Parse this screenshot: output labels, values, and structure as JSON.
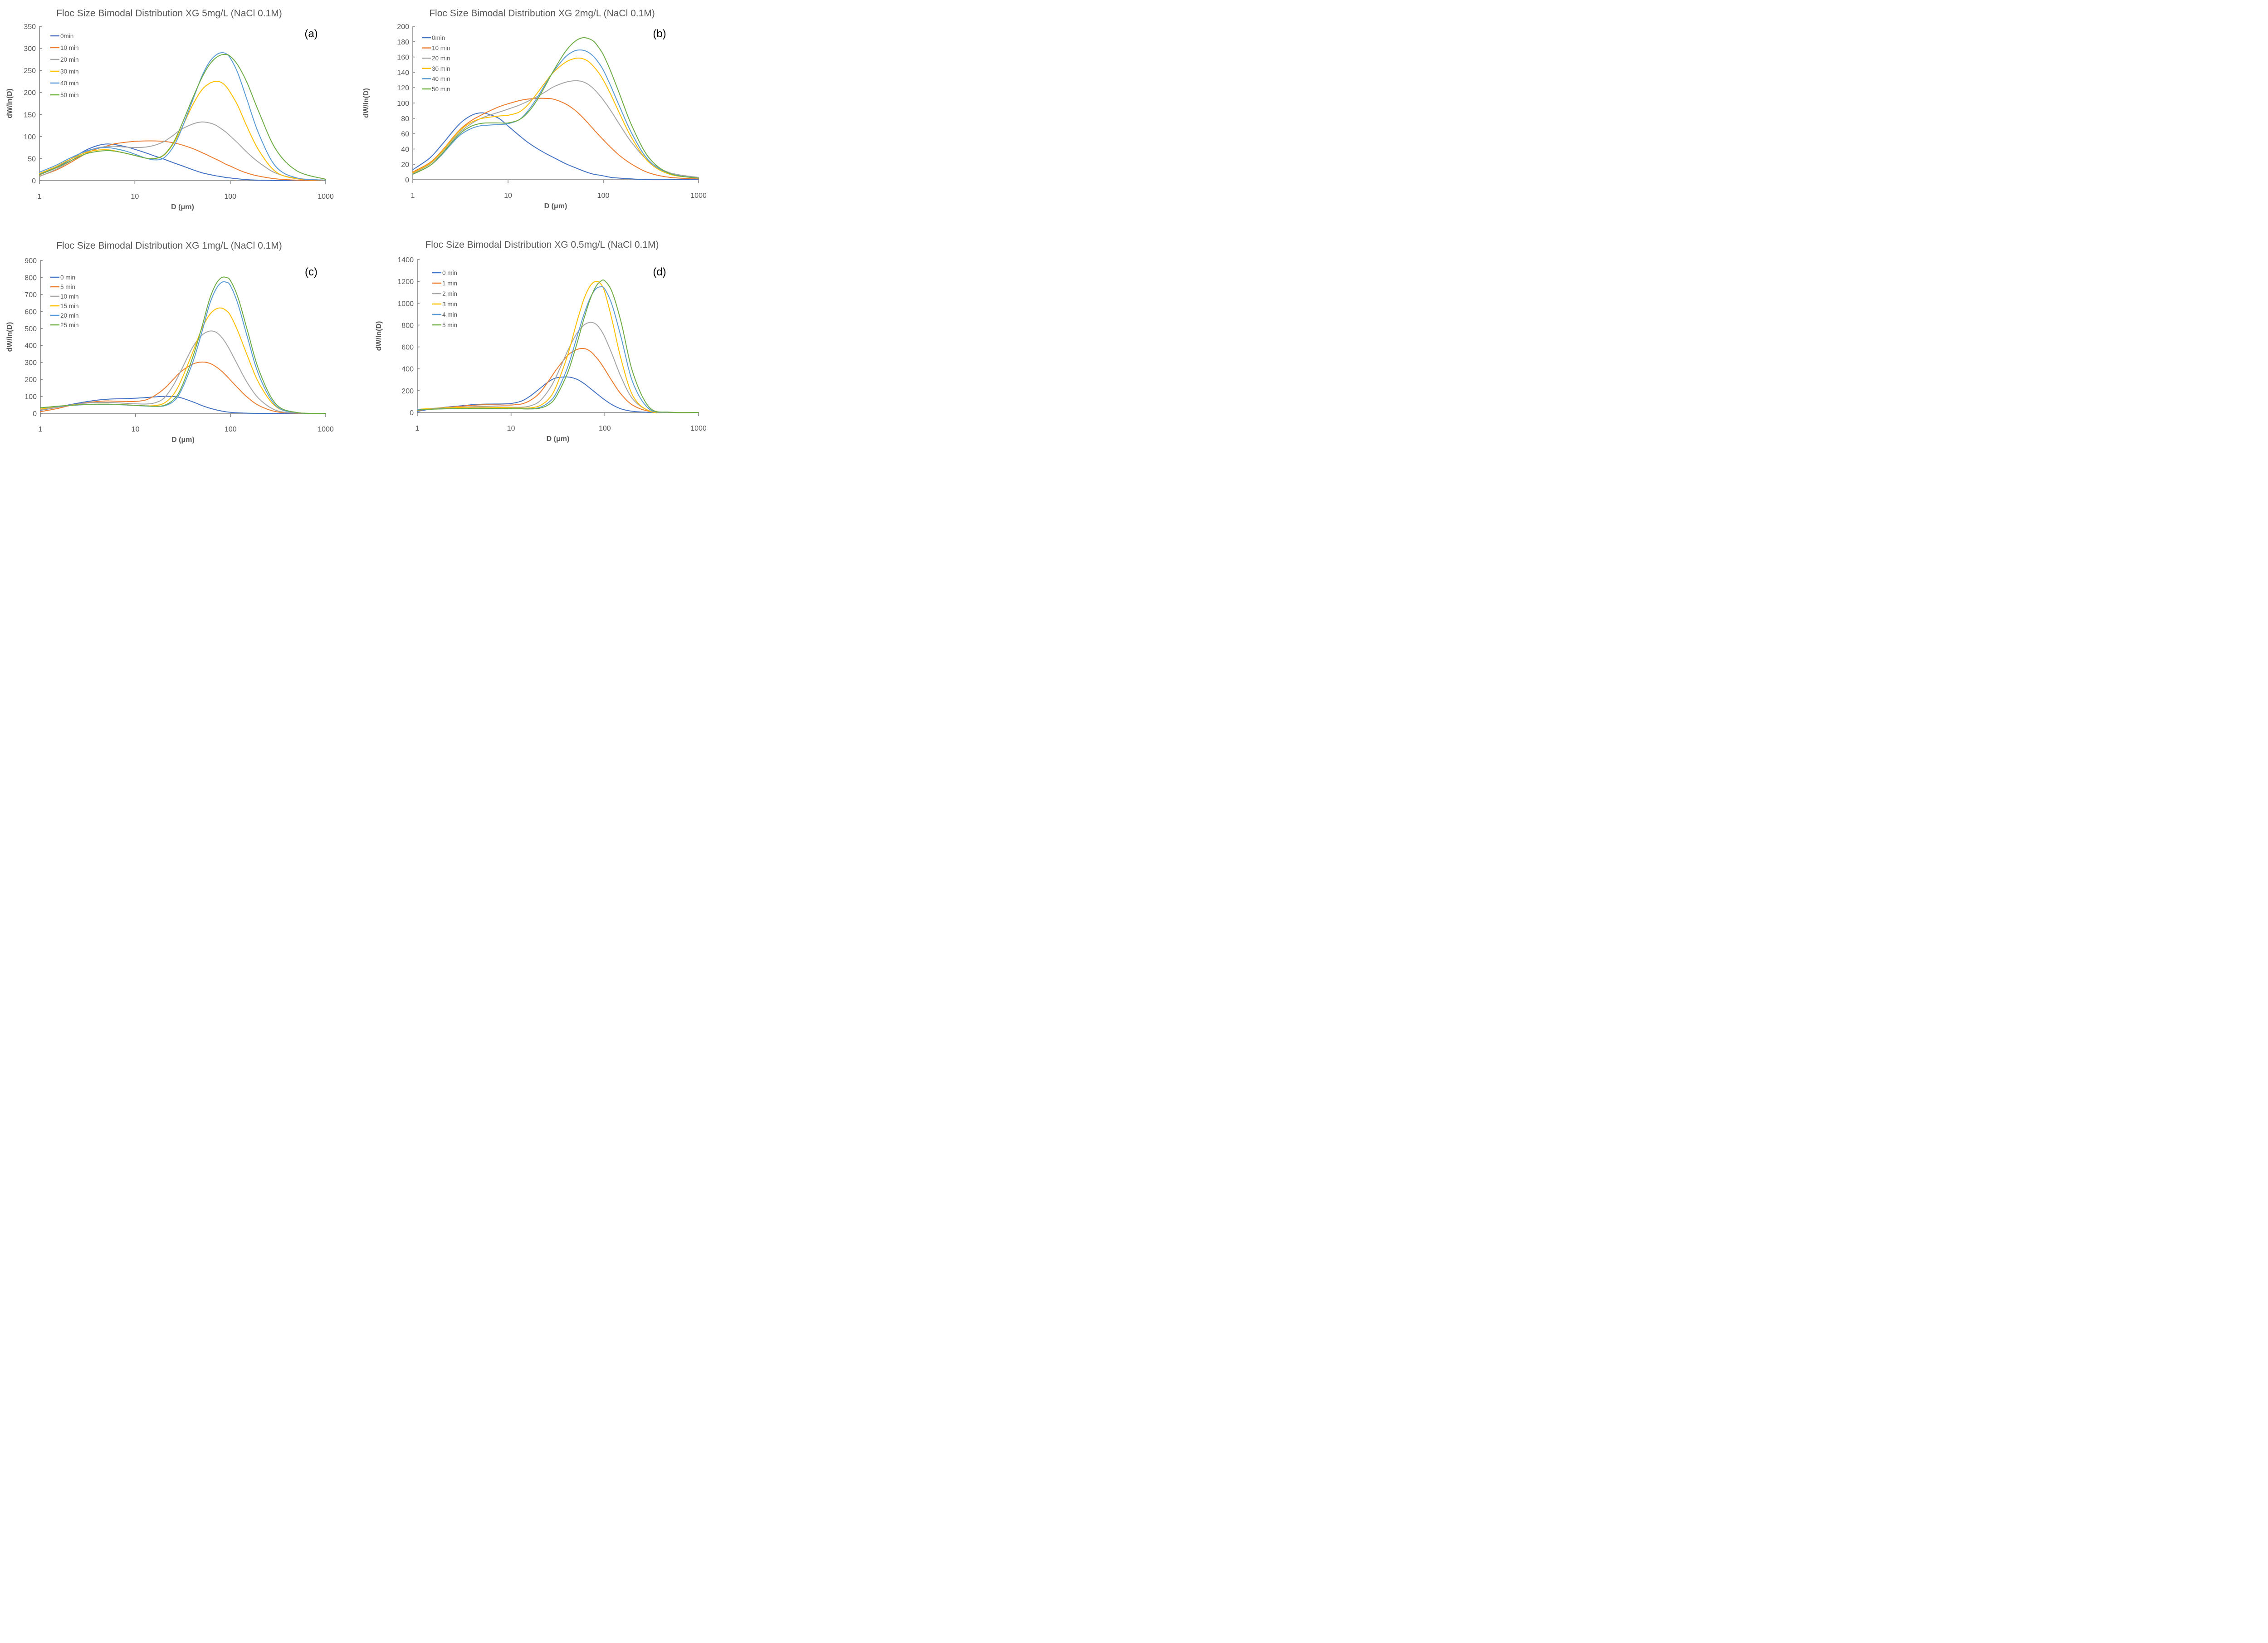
{
  "figure": {
    "description": "Four-panel figure of floc size bimodal distributions"
  },
  "chart_data": [
    {
      "id": "a",
      "type": "line",
      "title": "Floc Size Bimodal Distribution XG 5mg/L (NaCl 0.1M)",
      "panel_label": "(a)",
      "xlabel": "D (μm)",
      "ylabel": "dW/ln(D)",
      "xscale": "log",
      "xlim": [
        1,
        1000
      ],
      "ylim": [
        0,
        350
      ],
      "xticks": [
        "1",
        "10",
        "100",
        "1000"
      ],
      "xtick_values": [
        1,
        10,
        100,
        1000
      ],
      "yticks": [
        "0",
        "50",
        "100",
        "150",
        "200",
        "250",
        "300",
        "350"
      ],
      "ytick_values": [
        0,
        50,
        100,
        150,
        200,
        250,
        300,
        350
      ],
      "legend_position": "top-left",
      "grid": false,
      "x": [
        1,
        1.5,
        2,
        3,
        4,
        5,
        6,
        8,
        10,
        13,
        16,
        20,
        25,
        30,
        40,
        50,
        60,
        70,
        80,
        90,
        100,
        120,
        150,
        200,
        300,
        500,
        1000
      ],
      "series": [
        {
          "name": "0min",
          "color": "#4472C4",
          "values": [
            15,
            30,
            45,
            68,
            79,
            83,
            82,
            77,
            71,
            63,
            56,
            49,
            41,
            35,
            25,
            18,
            14,
            11,
            9,
            7,
            6,
            4,
            2,
            1,
            0,
            0,
            0
          ]
        },
        {
          "name": "10 min",
          "color": "#ED7D31",
          "values": [
            10,
            24,
            38,
            60,
            72,
            78,
            83,
            87,
            89,
            90,
            90,
            89,
            86,
            82,
            73,
            64,
            56,
            49,
            43,
            37,
            33,
            25,
            17,
            10,
            4,
            1,
            0
          ]
        },
        {
          "name": "20 min",
          "color": "#A5A5A5",
          "values": [
            9,
            26,
            41,
            64,
            74,
            77,
            78,
            76,
            75,
            76,
            80,
            88,
            102,
            115,
            128,
            133,
            131,
            126,
            118,
            110,
            101,
            85,
            64,
            41,
            17,
            5,
            1
          ]
        },
        {
          "name": "30 min",
          "color": "#FFC000",
          "values": [
            16,
            32,
            46,
            63,
            69,
            70,
            68,
            62,
            57,
            51,
            50,
            57,
            82,
            113,
            170,
            205,
            220,
            225,
            223,
            214,
            200,
            170,
            122,
            68,
            20,
            4,
            1
          ]
        },
        {
          "name": "40 min",
          "color": "#5B9BD5",
          "values": [
            19,
            35,
            49,
            66,
            73,
            75,
            73,
            67,
            60,
            51,
            47,
            51,
            75,
            110,
            180,
            235,
            268,
            284,
            290,
            288,
            278,
            244,
            183,
            105,
            32,
            6,
            1
          ]
        },
        {
          "name": "50 min",
          "color": "#70AD47",
          "values": [
            13,
            29,
            42,
            60,
            66,
            68,
            67,
            62,
            57,
            51,
            50,
            58,
            84,
            120,
            185,
            232,
            262,
            278,
            285,
            286,
            282,
            262,
            222,
            155,
            71,
            22,
            3
          ]
        }
      ]
    },
    {
      "id": "b",
      "type": "line",
      "title": "Floc Size Bimodal Distribution XG 2mg/L (NaCl 0.1M)",
      "panel_label": "(b)",
      "xlabel": "D (μm)",
      "ylabel": "dW/ln(D)",
      "xscale": "log",
      "xlim": [
        1,
        1000
      ],
      "ylim": [
        0,
        200
      ],
      "xticks": [
        "1",
        "10",
        "100",
        "1000"
      ],
      "xtick_values": [
        1,
        10,
        100,
        1000
      ],
      "yticks": [
        "0",
        "20",
        "40",
        "60",
        "80",
        "100",
        "120",
        "140",
        "160",
        "180",
        "200"
      ],
      "ytick_values": [
        0,
        20,
        40,
        60,
        80,
        100,
        120,
        140,
        160,
        180,
        200
      ],
      "legend_position": "top-left",
      "grid": false,
      "x": [
        1,
        1.5,
        2,
        3,
        4,
        5,
        6,
        8,
        10,
        13,
        16,
        20,
        25,
        30,
        40,
        50,
        60,
        70,
        80,
        90,
        100,
        120,
        150,
        200,
        300,
        500,
        1000
      ],
      "series": [
        {
          "name": "0min",
          "color": "#4472C4",
          "values": [
            13,
            28,
            45,
            71,
            83,
            87,
            86,
            80,
            70,
            58,
            49,
            41,
            34,
            29,
            21,
            16,
            12,
            9,
            7,
            6,
            5,
            3,
            2,
            1,
            0,
            0,
            0
          ]
        },
        {
          "name": "10 min",
          "color": "#ED7D31",
          "values": [
            10,
            22,
            37,
            63,
            76,
            83,
            88,
            95,
            99,
            103,
            105,
            106,
            106,
            105,
            99,
            91,
            82,
            73,
            65,
            58,
            52,
            42,
            31,
            20,
            9,
            3,
            1
          ]
        },
        {
          "name": "20 min",
          "color": "#A5A5A5",
          "values": [
            8,
            20,
            35,
            60,
            72,
            79,
            83,
            88,
            92,
            97,
            102,
            108,
            115,
            121,
            127,
            129,
            128,
            124,
            118,
            111,
            104,
            90,
            71,
            48,
            24,
            9,
            3
          ]
        },
        {
          "name": "30 min",
          "color": "#FFC000",
          "values": [
            9,
            21,
            36,
            62,
            74,
            79,
            81,
            83,
            84,
            88,
            97,
            112,
            128,
            140,
            153,
            158,
            158,
            154,
            147,
            139,
            130,
            111,
            85,
            54,
            23,
            7,
            2
          ]
        },
        {
          "name": "40 min",
          "color": "#5B9BD5",
          "values": [
            7,
            18,
            32,
            56,
            66,
            70,
            71,
            72,
            73,
            78,
            89,
            106,
            126,
            141,
            160,
            168,
            169,
            166,
            160,
            152,
            143,
            122,
            94,
            60,
            25,
            8,
            2
          ]
        },
        {
          "name": "50 min",
          "color": "#70AD47",
          "values": [
            7,
            18,
            33,
            58,
            69,
            73,
            74,
            74,
            74,
            78,
            87,
            103,
            124,
            142,
            167,
            180,
            185,
            184,
            180,
            172,
            163,
            141,
            110,
            70,
            29,
            8,
            2
          ]
        }
      ]
    },
    {
      "id": "c",
      "type": "line",
      "title": "Floc Size Bimodal Distribution XG 1mg/L (NaCl 0.1M)",
      "panel_label": "(c)",
      "xlabel": "D (μm)",
      "ylabel": "dW/ln(D)",
      "xscale": "log",
      "xlim": [
        1,
        1000
      ],
      "ylim": [
        0,
        900
      ],
      "xticks": [
        "1",
        "10",
        "100",
        "1000"
      ],
      "xtick_values": [
        1,
        10,
        100,
        1000
      ],
      "yticks": [
        "0",
        "100",
        "200",
        "300",
        "400",
        "500",
        "600",
        "700",
        "800",
        "900"
      ],
      "ytick_values": [
        0,
        100,
        200,
        300,
        400,
        500,
        600,
        700,
        800,
        900
      ],
      "legend_position": "top-left",
      "grid": false,
      "x": [
        1,
        1.5,
        2,
        3,
        4,
        5,
        6,
        8,
        10,
        13,
        16,
        20,
        25,
        30,
        40,
        50,
        60,
        70,
        80,
        90,
        100,
        120,
        150,
        200,
        300,
        500,
        1000
      ],
      "series": [
        {
          "name": "0 min",
          "color": "#4472C4",
          "values": [
            18,
            35,
            50,
            68,
            78,
            83,
            85,
            87,
            89,
            93,
            97,
            100,
            99,
            92,
            68,
            46,
            31,
            21,
            14,
            9,
            6,
            3,
            1,
            0,
            0,
            0,
            0
          ]
        },
        {
          "name": "5 min",
          "color": "#ED7D31",
          "values": [
            10,
            28,
            45,
            62,
            70,
            73,
            72,
            70,
            70,
            80,
            105,
            145,
            200,
            245,
            290,
            302,
            295,
            275,
            250,
            222,
            195,
            148,
            95,
            45,
            10,
            1,
            0
          ]
        },
        {
          "name": "10 min",
          "color": "#A5A5A5",
          "values": [
            20,
            35,
            47,
            60,
            64,
            64,
            63,
            59,
            56,
            55,
            62,
            90,
            165,
            250,
            390,
            460,
            484,
            478,
            450,
            410,
            365,
            280,
            180,
            85,
            18,
            2,
            0
          ]
        },
        {
          "name": "15 min",
          "color": "#FFC000",
          "values": [
            25,
            40,
            48,
            52,
            54,
            54,
            53,
            50,
            47,
            44,
            46,
            60,
            110,
            190,
            360,
            500,
            580,
            614,
            620,
            605,
            575,
            480,
            340,
            175,
            40,
            4,
            0
          ]
        },
        {
          "name": "20 min",
          "color": "#5B9BD5",
          "values": [
            33,
            40,
            46,
            51,
            53,
            53,
            52,
            49,
            46,
            43,
            41,
            44,
            70,
            130,
            300,
            480,
            640,
            730,
            770,
            772,
            750,
            640,
            450,
            220,
            45,
            4,
            0
          ]
        },
        {
          "name": "25 min",
          "color": "#70AD47",
          "values": [
            33,
            42,
            47,
            52,
            54,
            54,
            53,
            50,
            47,
            44,
            42,
            47,
            80,
            145,
            330,
            510,
            670,
            760,
            798,
            800,
            780,
            680,
            490,
            250,
            55,
            5,
            0
          ]
        }
      ]
    },
    {
      "id": "d",
      "type": "line",
      "title": "Floc Size Bimodal Distribution XG 0.5mg/L (NaCl 0.1M)",
      "panel_label": "(d)",
      "xlabel": "D (μm)",
      "ylabel": "dW/ln(D)",
      "xscale": "log",
      "xlim": [
        1,
        1000
      ],
      "ylim": [
        0,
        1400
      ],
      "xticks": [
        "1",
        "10",
        "100",
        "1000"
      ],
      "xtick_values": [
        1,
        10,
        100,
        1000
      ],
      "yticks": [
        "0",
        "200",
        "400",
        "600",
        "800",
        "1000",
        "1200",
        "1400"
      ],
      "ytick_values": [
        0,
        200,
        400,
        600,
        800,
        1000,
        1200,
        1400
      ],
      "legend_position": "top-left",
      "grid": false,
      "x": [
        1,
        1.5,
        2,
        3,
        4,
        5,
        6,
        8,
        10,
        13,
        16,
        20,
        25,
        30,
        40,
        50,
        60,
        70,
        80,
        90,
        100,
        120,
        150,
        200,
        300,
        500,
        1000
      ],
      "series": [
        {
          "name": "0 min",
          "color": "#4472C4",
          "values": [
            10,
            35,
            48,
            62,
            72,
            76,
            77,
            78,
            82,
            105,
            150,
            215,
            280,
            315,
            325,
            305,
            265,
            220,
            180,
            145,
            115,
            70,
            32,
            10,
            1,
            0,
            0
          ]
        },
        {
          "name": "1 min",
          "color": "#ED7D31",
          "values": [
            18,
            35,
            45,
            58,
            66,
            70,
            70,
            68,
            68,
            78,
            110,
            175,
            285,
            385,
            520,
            575,
            585,
            560,
            510,
            455,
            395,
            285,
            165,
            65,
            10,
            1,
            0
          ]
        },
        {
          "name": "2 min",
          "color": "#A5A5A5",
          "values": [
            25,
            38,
            44,
            50,
            53,
            54,
            53,
            50,
            48,
            48,
            60,
            100,
            200,
            320,
            560,
            720,
            800,
            825,
            810,
            760,
            690,
            530,
            320,
            120,
            15,
            1,
            0
          ]
        },
        {
          "name": "3 min",
          "color": "#FFC000",
          "values": [
            28,
            38,
            42,
            46,
            48,
            48,
            47,
            45,
            42,
            40,
            42,
            60,
            120,
            230,
            520,
            820,
            1040,
            1160,
            1200,
            1180,
            1100,
            840,
            480,
            150,
            12,
            1,
            0
          ]
        },
        {
          "name": "4 min",
          "color": "#5B9BD5",
          "values": [
            25,
            32,
            35,
            38,
            39,
            39,
            38,
            37,
            35,
            33,
            34,
            45,
            90,
            170,
            410,
            680,
            900,
            1050,
            1130,
            1150,
            1130,
            980,
            680,
            270,
            30,
            1,
            0
          ]
        },
        {
          "name": "5 min",
          "color": "#70AD47",
          "values": [
            22,
            30,
            33,
            36,
            37,
            37,
            37,
            36,
            35,
            33,
            32,
            38,
            70,
            140,
            360,
            620,
            860,
            1040,
            1150,
            1200,
            1205,
            1100,
            820,
            360,
            45,
            2,
            0
          ]
        }
      ]
    }
  ]
}
